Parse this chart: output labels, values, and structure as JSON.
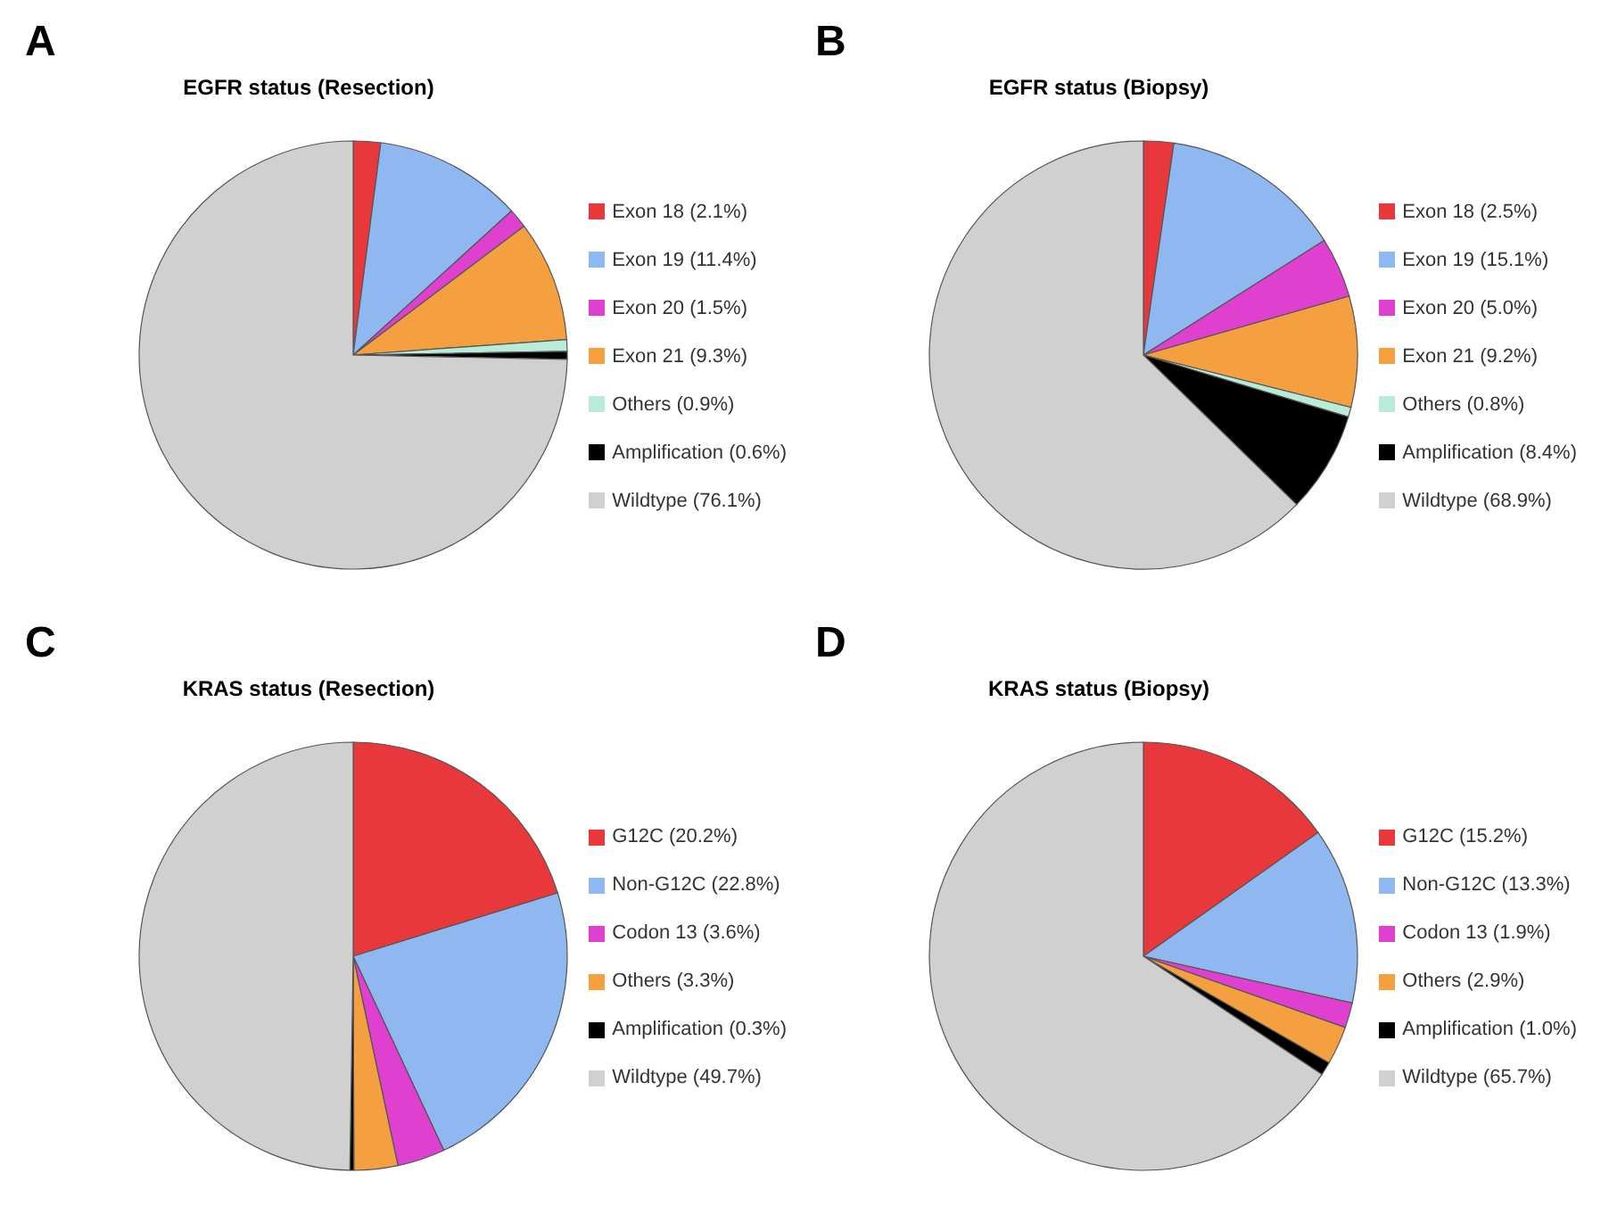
{
  "chart_data": [
    {
      "type": "pie",
      "title": "EGFR status (Resection)",
      "annotations": [
        "A"
      ],
      "legend": "right",
      "categories": [
        "Exon 18 (2.1%)",
        "Exon 19 (11.4%)",
        "Exon 20 (1.5%)",
        "Exon 21 (9.3%)",
        "Others (0.9%)",
        "Amplification (0.6%)",
        "Wildtype (76.1%)"
      ],
      "values": [
        2.1,
        11.4,
        1.5,
        9.3,
        0.9,
        0.6,
        76.1
      ],
      "colors": [
        "#e8383c",
        "#8fb8f0",
        "#e040d0",
        "#f5a040",
        "#b8ecd8",
        "#000000",
        "#d0d0d0"
      ]
    },
    {
      "type": "pie",
      "title": "EGFR status (Biopsy)",
      "annotations": [
        "B"
      ],
      "legend": "right",
      "categories": [
        "Exon 18 (2.5%)",
        "Exon 19 (15.1%)",
        "Exon 20 (5.0%)",
        "Exon 21 (9.2%)",
        "Others (0.8%)",
        "Amplification (8.4%)",
        "Wildtype (68.9%)"
      ],
      "values": [
        2.5,
        15.1,
        5.0,
        9.2,
        0.8,
        8.4,
        68.9
      ],
      "colors": [
        "#e8383c",
        "#8fb8f0",
        "#e040d0",
        "#f5a040",
        "#b8ecd8",
        "#000000",
        "#d0d0d0"
      ]
    },
    {
      "type": "pie",
      "title": "KRAS status (Resection)",
      "annotations": [
        "C"
      ],
      "legend": "right",
      "categories": [
        "G12C (20.2%)",
        "Non-G12C (22.8%)",
        "Codon 13 (3.6%)",
        "Others (3.3%)",
        "Amplification (0.3%)",
        "Wildtype (49.7%)"
      ],
      "values": [
        20.2,
        22.8,
        3.6,
        3.3,
        0.3,
        49.7
      ],
      "colors": [
        "#e8383c",
        "#8fb8f0",
        "#e040d0",
        "#f5a040",
        "#000000",
        "#d0d0d0"
      ]
    },
    {
      "type": "pie",
      "title": "KRAS status (Biopsy)",
      "annotations": [
        "D"
      ],
      "legend": "right",
      "categories": [
        "G12C (15.2%)",
        "Non-G12C (13.3%)",
        "Codon 13 (1.9%)",
        "Others (2.9%)",
        "Amplification (1.0%)",
        "Wildtype (65.7%)"
      ],
      "values": [
        15.2,
        13.3,
        1.9,
        2.9,
        1.0,
        65.7
      ],
      "colors": [
        "#e8383c",
        "#8fb8f0",
        "#e040d0",
        "#f5a040",
        "#000000",
        "#d0d0d0"
      ]
    }
  ]
}
